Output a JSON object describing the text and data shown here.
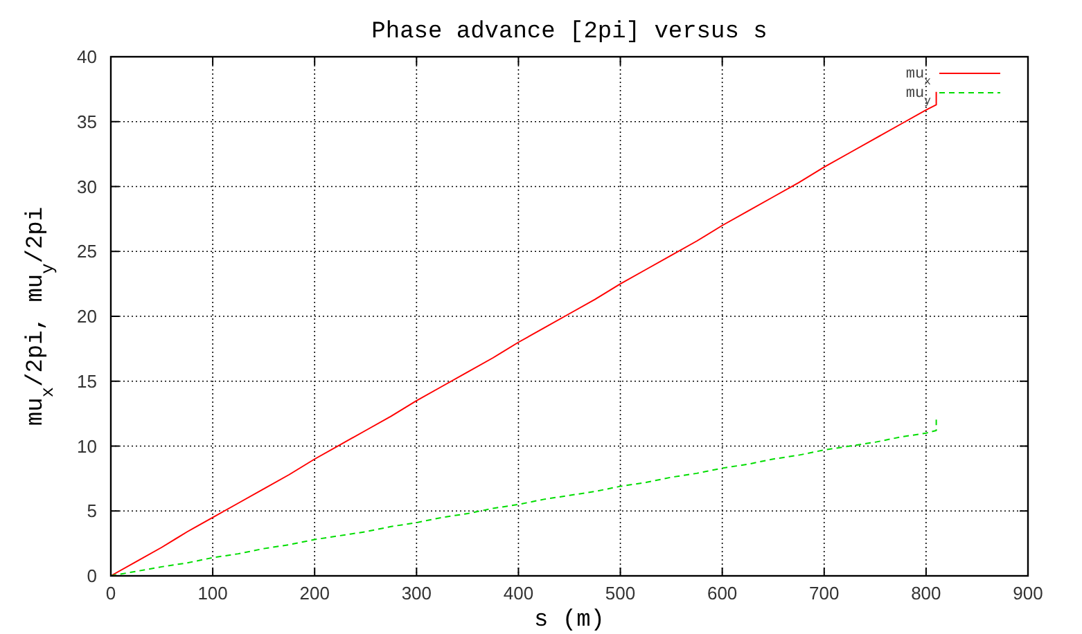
{
  "chart_data": {
    "type": "line",
    "title": "Phase advance [2pi] versus s",
    "xlabel": "s  (m)",
    "ylabel": "mu$_{x}$/2pi, mu$_{y}$/2pi",
    "xlim": [
      0,
      900
    ],
    "xticks": [
      0,
      100,
      200,
      300,
      400,
      500,
      600,
      700,
      800,
      900
    ],
    "ylim": [
      0,
      40
    ],
    "yticks": [
      0,
      5,
      10,
      15,
      20,
      25,
      30,
      35,
      40
    ],
    "grid": true,
    "legend": "top right",
    "marker": "none",
    "series": [
      {
        "name": "mu$_{x}$",
        "color": "#ff0000",
        "line_style": "solid",
        "x": [
          0,
          25,
          50,
          75,
          100,
          125,
          150,
          175,
          200,
          225,
          250,
          275,
          300,
          325,
          350,
          375,
          400,
          425,
          450,
          475,
          500,
          525,
          550,
          575,
          600,
          625,
          650,
          675,
          700,
          725,
          750,
          775,
          800,
          810,
          810
        ],
        "values": [
          0,
          1.1,
          2.2,
          3.4,
          4.5,
          5.6,
          6.7,
          7.8,
          9.0,
          10.1,
          11.2,
          12.3,
          13.5,
          14.6,
          15.7,
          16.8,
          18.0,
          19.1,
          20.2,
          21.3,
          22.5,
          23.6,
          24.7,
          25.8,
          27.0,
          28.1,
          29.2,
          30.3,
          31.5,
          32.6,
          33.7,
          34.8,
          35.9,
          36.3,
          37.3
        ]
      },
      {
        "name": "mu$_{y}$",
        "color": "#00dd00",
        "line_style": "dashed",
        "x": [
          0,
          25,
          50,
          75,
          100,
          125,
          150,
          175,
          200,
          225,
          250,
          275,
          300,
          325,
          350,
          375,
          400,
          425,
          450,
          475,
          500,
          525,
          550,
          575,
          600,
          625,
          650,
          675,
          700,
          725,
          750,
          775,
          800,
          810,
          810
        ],
        "values": [
          0,
          0.35,
          0.7,
          1.0,
          1.4,
          1.7,
          2.1,
          2.4,
          2.8,
          3.1,
          3.4,
          3.8,
          4.1,
          4.5,
          4.8,
          5.2,
          5.5,
          5.9,
          6.2,
          6.5,
          6.9,
          7.2,
          7.6,
          7.9,
          8.3,
          8.6,
          9.0,
          9.3,
          9.7,
          10.0,
          10.3,
          10.7,
          11.0,
          11.2,
          12.2
        ]
      }
    ]
  }
}
